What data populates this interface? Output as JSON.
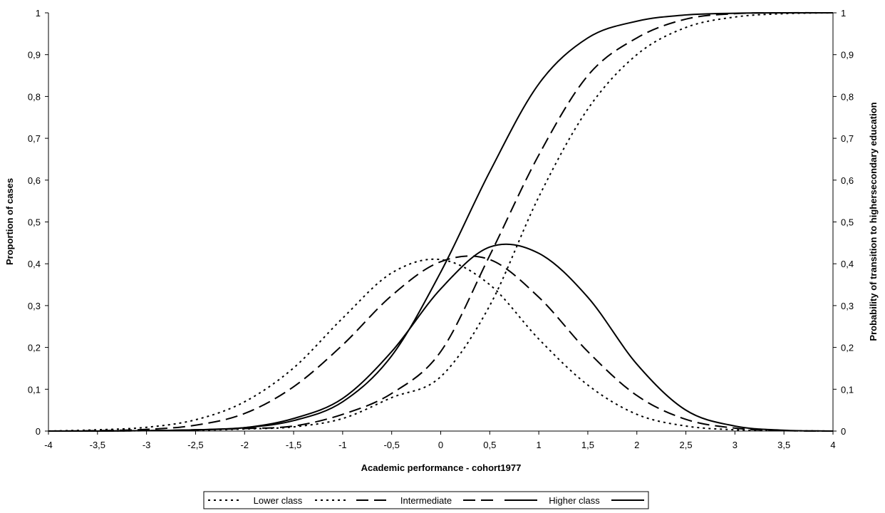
{
  "chart_data": {
    "type": "line",
    "title": "",
    "xlabel": "Academic performance - cohort1977",
    "ylabel": "Proportion of cases",
    "y2label": "Probability of transition to highersecondary education",
    "xlim": [
      -4,
      4
    ],
    "ylim": [
      0,
      1
    ],
    "y2lim": [
      0,
      1
    ],
    "grid": false,
    "legend_position": "bottom",
    "x_ticks": [
      "-4",
      "-3,5",
      "-3",
      "-2,5",
      "-2",
      "-1,5",
      "-1",
      "-0,5",
      "0",
      "0,5",
      "1",
      "1,5",
      "2",
      "2,5",
      "3",
      "3,5",
      "4"
    ],
    "y_ticks": [
      "0",
      "0,1",
      "0,2",
      "0,3",
      "0,4",
      "0,5",
      "0,6",
      "0,7",
      "0,8",
      "0,9",
      "1"
    ],
    "y2_ticks": [
      "0",
      "0,1",
      "0,2",
      "0,3",
      "0,4",
      "0,5",
      "0,6",
      "0,7",
      "0,8",
      "0,9",
      "1"
    ],
    "x": [
      -4,
      -3.5,
      -3,
      -2.5,
      -2,
      -1.5,
      -1,
      -0.5,
      0,
      0.5,
      1,
      1.5,
      2,
      2.5,
      3,
      3.5,
      4
    ],
    "series": [
      {
        "name": "Lower class",
        "kind": "distribution",
        "axis": "left",
        "style": "dotted",
        "values": [
          0.0,
          0.003,
          0.009,
          0.027,
          0.07,
          0.151,
          0.27,
          0.378,
          0.41,
          0.35,
          0.22,
          0.11,
          0.04,
          0.012,
          0.003,
          0.001,
          0.0
        ]
      },
      {
        "name": "Intermediate",
        "kind": "distribution",
        "axis": "left",
        "style": "dashed",
        "values": [
          0.0,
          0.001,
          0.004,
          0.014,
          0.042,
          0.106,
          0.206,
          0.324,
          0.405,
          0.41,
          0.32,
          0.19,
          0.085,
          0.028,
          0.007,
          0.001,
          0.0
        ]
      },
      {
        "name": "Higher class",
        "kind": "distribution",
        "axis": "left",
        "style": "solid",
        "values": [
          0.0,
          0.0,
          0.001,
          0.003,
          0.008,
          0.03,
          0.078,
          0.19,
          0.34,
          0.44,
          0.425,
          0.32,
          0.16,
          0.05,
          0.012,
          0.002,
          0.0
        ]
      },
      {
        "name": "Lower class",
        "kind": "transition",
        "axis": "right",
        "style": "dotted",
        "values": [
          0.0,
          0.0,
          0.001,
          0.002,
          0.005,
          0.01,
          0.03,
          0.08,
          0.13,
          0.3,
          0.56,
          0.77,
          0.9,
          0.965,
          0.99,
          0.998,
          1.0
        ]
      },
      {
        "name": "Intermediate",
        "kind": "transition",
        "axis": "right",
        "style": "dashed",
        "values": [
          0.0,
          0.0,
          0.001,
          0.003,
          0.006,
          0.012,
          0.04,
          0.09,
          0.19,
          0.42,
          0.66,
          0.85,
          0.94,
          0.985,
          0.998,
          1.0,
          1.0
        ]
      },
      {
        "name": "Higher class",
        "kind": "transition",
        "axis": "right",
        "style": "solid",
        "values": [
          0.0,
          0.0,
          0.001,
          0.003,
          0.008,
          0.025,
          0.07,
          0.18,
          0.38,
          0.62,
          0.83,
          0.94,
          0.98,
          0.995,
          0.999,
          1.0,
          1.0
        ]
      }
    ],
    "legend": [
      {
        "label": "Lower class",
        "style": "dotted"
      },
      {
        "label": "Intermediate",
        "style": "dashed"
      },
      {
        "label": "Higher class",
        "style": "solid"
      }
    ],
    "colors": {
      "line": "#000000",
      "background": "#ffffff"
    }
  }
}
